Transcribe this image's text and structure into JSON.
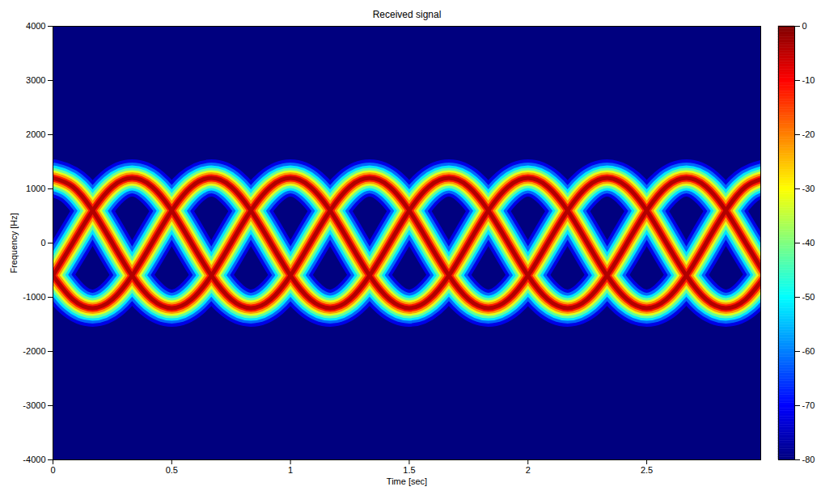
{
  "chart_data": {
    "type": "spectrogram",
    "title": "Received signal",
    "x_label": "Time [sec]",
    "y_label": "Frequency [Hz]",
    "x": [
      0,
      0.083,
      0.167,
      0.25,
      0.333,
      0.417,
      0.5,
      0.583,
      0.667,
      0.75,
      0.833,
      0.917,
      1,
      1.083,
      1.167,
      1.25,
      1.333,
      1.417,
      1.5,
      1.583,
      1.667,
      1.75,
      1.833,
      1.917,
      2,
      2.083,
      2.167,
      2.25,
      2.333,
      2.417,
      2.5,
      2.583,
      2.667,
      2.75,
      2.833,
      2.917,
      3
    ],
    "series": [
      {
        "level": 0,
        "values": [
          1200,
          1040,
          600,
          0,
          -600,
          -1040,
          -1200,
          -1040,
          -600,
          0,
          600,
          1040,
          1200,
          1040,
          600,
          0,
          -600,
          -1040,
          -1200,
          -1040,
          -600,
          0,
          600,
          1040,
          1200,
          1040,
          600,
          0,
          -600,
          -1040,
          -1200,
          -1040,
          -600,
          0,
          600,
          1040,
          1200
        ]
      },
      {
        "level": 0,
        "values": [
          -600,
          0,
          600,
          1040,
          1200,
          1040,
          600,
          0,
          -600,
          -1040,
          -1200,
          -1040,
          -600,
          0,
          600,
          1040,
          1200,
          1040,
          600,
          0,
          -600,
          -1040,
          -1200,
          -1040,
          -600,
          0,
          600,
          1040,
          1200,
          1040,
          600,
          0,
          -600,
          -1040,
          -1200,
          -1040,
          -600
        ]
      },
      {
        "level": 0,
        "values": [
          -600,
          -1040,
          -1200,
          -1040,
          -600,
          0,
          600,
          1040,
          1200,
          1040,
          600,
          0,
          -600,
          -1040,
          -1200,
          -1040,
          -600,
          0,
          600,
          1040,
          1200,
          1040,
          600,
          0,
          -600,
          -1040,
          -1200,
          -1040,
          -600,
          0,
          600,
          1040,
          1200,
          1040,
          600,
          0,
          -600
        ]
      }
    ],
    "xlim": [
      0,
      2.98
    ],
    "xticks": [
      0,
      0.5,
      1,
      1.5,
      2,
      2.5
    ],
    "ylim": [
      -4000,
      4000
    ],
    "yticks": [
      -4000,
      -3000,
      -2000,
      -1000,
      0,
      1000,
      2000,
      3000,
      4000
    ],
    "colorbar": {
      "range": [
        -80,
        0
      ],
      "ticks": [
        0,
        -10,
        -20,
        -30,
        -40,
        -50,
        -60,
        -70,
        -80
      ]
    }
  }
}
